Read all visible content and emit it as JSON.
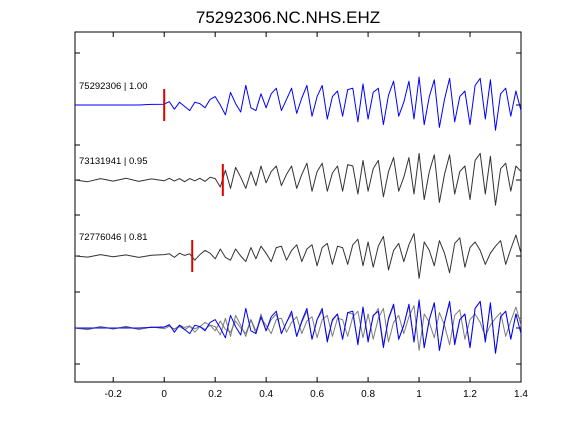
{
  "chart_data": {
    "type": "line",
    "title": "75292306.NC.NHS.EHZ",
    "xlabel": "",
    "ylabel": "",
    "xlim": [
      -0.35,
      1.4
    ],
    "grid": false,
    "x_ticks": [
      -0.2,
      0,
      0.2,
      0.4,
      0.6,
      0.8,
      1,
      1.2,
      1.4
    ],
    "x_tick_labels": [
      "-0.2",
      "0",
      "0.2",
      "0.4",
      "0.6",
      "0.8",
      "1",
      "1.2",
      "1.4"
    ],
    "colors": {
      "reference": "#0000ff",
      "other": "#333333",
      "pick": "#dd0000",
      "axes": "#000000"
    },
    "series": [
      {
        "label": "75292306 | 1.00",
        "event_id": "75292306",
        "correlation": "1.00",
        "color": "#0000ff",
        "pick_time": 0.0,
        "x": [
          -0.35,
          -0.3,
          -0.25,
          -0.2,
          -0.15,
          -0.1,
          -0.05,
          0,
          0.02,
          0.04,
          0.06,
          0.08,
          0.1,
          0.12,
          0.14,
          0.16,
          0.18,
          0.2,
          0.22,
          0.24,
          0.26,
          0.28,
          0.3,
          0.32,
          0.34,
          0.36,
          0.38,
          0.4,
          0.42,
          0.44,
          0.46,
          0.48,
          0.5,
          0.52,
          0.54,
          0.56,
          0.58,
          0.6,
          0.62,
          0.64,
          0.66,
          0.68,
          0.7,
          0.72,
          0.74,
          0.76,
          0.78,
          0.8,
          0.82,
          0.84,
          0.86,
          0.88,
          0.9,
          0.92,
          0.94,
          0.96,
          0.98,
          1,
          1.02,
          1.04,
          1.06,
          1.08,
          1.1,
          1.12,
          1.14,
          1.16,
          1.18,
          1.2,
          1.22,
          1.24,
          1.26,
          1.28,
          1.3,
          1.32,
          1.34,
          1.36,
          1.38,
          1.4
        ],
        "y": [
          0,
          0,
          0,
          0,
          0,
          0,
          0.02,
          0.03,
          0.12,
          -0.15,
          0.1,
          -0.05,
          -0.2,
          0.1,
          0.05,
          -0.1,
          0.2,
          0.3,
          0,
          -0.35,
          0.45,
          0.05,
          -0.25,
          0.7,
          -0.1,
          -0.2,
          0.4,
          -0.1,
          0.4,
          0.6,
          -0.2,
          0.2,
          0.6,
          -0.3,
          0.25,
          0.7,
          -0.4,
          0.3,
          0.7,
          -0.5,
          0.3,
          0.5,
          -0.4,
          0.55,
          0.6,
          -0.6,
          0.75,
          -0.5,
          0.45,
          0.6,
          -0.7,
          0.35,
          0.85,
          -0.4,
          0.1,
          0.85,
          -0.5,
          1.0,
          -0.7,
          0.3,
          0.9,
          -0.8,
          0.2,
          0.95,
          -0.6,
          0.3,
          0.5,
          -0.7,
          0.7,
          0.95,
          -0.5,
          0.9,
          -0.9,
          0.4,
          0.6,
          -0.4,
          0.5,
          -0.2
        ]
      },
      {
        "label": "73131941 | 0.95",
        "event_id": "73131941",
        "correlation": "0.95",
        "color": "#333333",
        "pick_time": 0.23,
        "x": [
          -0.35,
          -0.3,
          -0.25,
          -0.2,
          -0.15,
          -0.1,
          -0.05,
          0,
          0.02,
          0.04,
          0.06,
          0.08,
          0.1,
          0.12,
          0.14,
          0.16,
          0.18,
          0.2,
          0.22,
          0.24,
          0.26,
          0.28,
          0.3,
          0.32,
          0.34,
          0.36,
          0.38,
          0.4,
          0.42,
          0.44,
          0.46,
          0.48,
          0.5,
          0.52,
          0.54,
          0.56,
          0.58,
          0.6,
          0.62,
          0.64,
          0.66,
          0.68,
          0.7,
          0.72,
          0.74,
          0.76,
          0.78,
          0.8,
          0.82,
          0.84,
          0.86,
          0.88,
          0.9,
          0.92,
          0.94,
          0.96,
          0.98,
          1,
          1.02,
          1.04,
          1.06,
          1.08,
          1.1,
          1.12,
          1.14,
          1.16,
          1.18,
          1.2,
          1.22,
          1.24,
          1.26,
          1.28,
          1.3,
          1.32,
          1.34,
          1.36,
          1.38,
          1.4
        ],
        "y": [
          0,
          -0.06,
          0.05,
          -0.04,
          0.06,
          -0.05,
          0.04,
          -0.03,
          0.06,
          -0.04,
          0.05,
          -0.06,
          0.05,
          -0.03,
          0.06,
          -0.05,
          0.1,
          0.05,
          -0.25,
          0.35,
          -0.3,
          0.45,
          0.1,
          -0.3,
          0.3,
          -0.2,
          0.5,
          -0.1,
          0.3,
          0.5,
          -0.2,
          0.2,
          0.5,
          -0.3,
          0.2,
          0.6,
          -0.4,
          0.3,
          0.6,
          -0.4,
          0.25,
          0.5,
          -0.4,
          0.55,
          0.5,
          -0.5,
          0.7,
          -0.4,
          0.4,
          0.7,
          -0.6,
          0.3,
          0.8,
          -0.4,
          0.1,
          0.8,
          -0.5,
          0.95,
          -0.7,
          0.3,
          0.9,
          -0.8,
          0.2,
          0.9,
          -0.5,
          0.3,
          0.5,
          -0.7,
          0.7,
          0.95,
          -0.5,
          0.85,
          -0.9,
          0.4,
          0.6,
          -0.4,
          0.5,
          0.3
        ]
      },
      {
        "label": "72776046 | 0.81",
        "event_id": "72776046",
        "correlation": "0.81",
        "color": "#333333",
        "pick_time": 0.11,
        "x": [
          -0.35,
          -0.3,
          -0.25,
          -0.2,
          -0.15,
          -0.1,
          -0.05,
          0,
          0.02,
          0.04,
          0.06,
          0.08,
          0.1,
          0.12,
          0.14,
          0.16,
          0.18,
          0.2,
          0.22,
          0.24,
          0.26,
          0.28,
          0.3,
          0.32,
          0.34,
          0.36,
          0.38,
          0.4,
          0.42,
          0.44,
          0.46,
          0.48,
          0.5,
          0.52,
          0.54,
          0.56,
          0.58,
          0.6,
          0.62,
          0.64,
          0.66,
          0.68,
          0.7,
          0.72,
          0.74,
          0.76,
          0.78,
          0.8,
          0.82,
          0.84,
          0.86,
          0.88,
          0.9,
          0.92,
          0.94,
          0.96,
          0.98,
          1,
          1.02,
          1.04,
          1.06,
          1.08,
          1.1,
          1.12,
          1.14,
          1.16,
          1.18,
          1.2,
          1.22,
          1.24,
          1.26,
          1.28,
          1.3,
          1.32,
          1.34,
          1.36,
          1.38,
          1.4
        ],
        "y": [
          0,
          -0.04,
          0.05,
          -0.03,
          0.04,
          -0.05,
          0.03,
          0.05,
          0.08,
          -0.05,
          0.1,
          0.02,
          0.08,
          -0.15,
          0.05,
          0.2,
          0.1,
          -0.1,
          0.25,
          -0.05,
          -0.15,
          0.25,
          0,
          -0.2,
          0.3,
          -0.1,
          0.35,
          0.1,
          -0.2,
          0.3,
          0.35,
          -0.15,
          0.2,
          0.4,
          -0.2,
          0.25,
          0.4,
          -0.35,
          0.3,
          0.45,
          -0.3,
          0.35,
          0.3,
          -0.3,
          0.4,
          0.6,
          -0.35,
          0.5,
          -0.4,
          0.35,
          0.7,
          -0.5,
          0.2,
          0.45,
          -0.2,
          0.4,
          0.8,
          -0.8,
          0.5,
          0.2,
          -0.35,
          0.55,
          0.1,
          -0.6,
          0.45,
          0.65,
          -0.4,
          0.3,
          0.5,
          0.2,
          -0.3,
          0.1,
          0.35,
          0.55,
          -0.3,
          0.25,
          0.75,
          0.1
        ]
      }
    ]
  }
}
